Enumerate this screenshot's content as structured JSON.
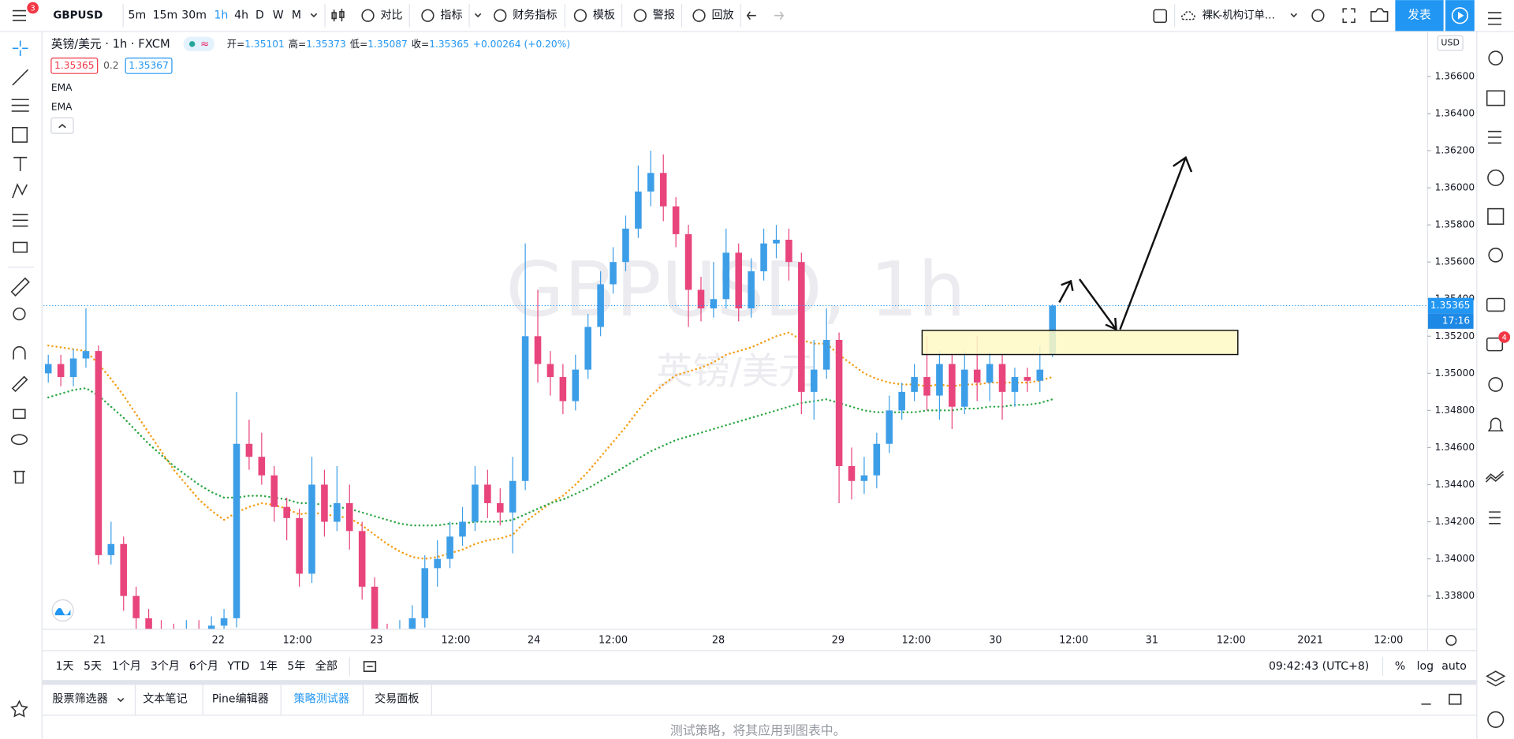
{
  "toolbar": {
    "badge": "3",
    "symbol": "GBPUSD",
    "intervals": [
      "5m",
      "15m",
      "30m",
      "1h",
      "4h",
      "D",
      "W",
      "M"
    ],
    "active_interval": "1h",
    "buttons": [
      "对比",
      "指标",
      "财务指标",
      "模板",
      "警报",
      "回放"
    ],
    "layout_name": "裸K-机构订单...",
    "publish": "发表"
  },
  "legend": {
    "title": "英镑/美元 · 1h · FXCM",
    "ohlc": [
      {
        "label": "开=",
        "value": "1.35101"
      },
      {
        "label": "高=",
        "value": "1.35373"
      },
      {
        "label": "低=",
        "value": "1.35087"
      },
      {
        "label": "收=",
        "value": "1.35365"
      }
    ],
    "change": "+0.00264 (+0.20%)",
    "bid": "1.35365",
    "spread": "0.2",
    "ask": "1.35367",
    "indicators": [
      "EMA",
      "EMA"
    ]
  },
  "watermark": {
    "symbol": "GBPUSD, 1h",
    "name": "英镑/美元"
  },
  "chart_data": {
    "type": "candlestick",
    "currency": "USD",
    "up_color": "#3d9ee8",
    "down_color": "#e8457c",
    "open": [
      1.35,
      1.3505,
      1.3498,
      1.3508,
      1.3512,
      1.3402,
      1.3408,
      1.338,
      1.3368,
      1.3362,
      1.336,
      1.3358,
      1.3362,
      1.336,
      1.3364,
      1.3368,
      1.3462,
      1.3455,
      1.3445,
      1.3428,
      1.3422,
      1.3392,
      1.344,
      1.342,
      1.343,
      1.3415,
      1.3385,
      1.336,
      1.3355,
      1.3362,
      1.3368,
      1.3395,
      1.34,
      1.3412,
      1.342,
      1.344,
      1.343,
      1.3425,
      1.3442,
      1.352,
      1.3505,
      1.3498,
      1.3485,
      1.3502,
      1.3525,
      1.3548,
      1.356,
      1.3578,
      1.3598,
      1.3608,
      1.359,
      1.3575,
      1.3545,
      1.3535,
      1.354,
      1.3565,
      1.3535,
      1.3555,
      1.357,
      1.3572,
      1.356,
      1.349,
      1.3502,
      1.3518,
      1.345,
      1.3442,
      1.3445,
      1.3462,
      1.348,
      1.349,
      1.3498,
      1.3488,
      1.3505,
      1.3482,
      1.3502,
      1.3495,
      1.3505,
      1.349,
      1.3498,
      1.3496,
      1.35101
    ],
    "high": [
      1.351,
      1.351,
      1.3513,
      1.3535,
      1.3515,
      1.342,
      1.3412,
      1.3385,
      1.3373,
      1.3367,
      1.3365,
      1.3367,
      1.3367,
      1.3369,
      1.3373,
      1.349,
      1.3475,
      1.3468,
      1.345,
      1.3433,
      1.3427,
      1.3455,
      1.3448,
      1.345,
      1.344,
      1.342,
      1.339,
      1.3365,
      1.3367,
      1.3375,
      1.3402,
      1.341,
      1.342,
      1.3428,
      1.345,
      1.3448,
      1.3438,
      1.3455,
      1.357,
      1.3545,
      1.3512,
      1.3505,
      1.351,
      1.3532,
      1.3555,
      1.3568,
      1.3585,
      1.3612,
      1.362,
      1.3618,
      1.3595,
      1.358,
      1.3552,
      1.356,
      1.3578,
      1.357,
      1.3562,
      1.3578,
      1.358,
      1.3578,
      1.3565,
      1.3518,
      1.3535,
      1.3522,
      1.346,
      1.3455,
      1.3468,
      1.3488,
      1.3495,
      1.3505,
      1.352,
      1.3512,
      1.351,
      1.3512,
      1.352,
      1.3512,
      1.351,
      1.3503,
      1.3503,
      1.3515,
      1.35373
    ],
    "low": [
      1.3495,
      1.3493,
      1.3493,
      1.3503,
      1.3397,
      1.3397,
      1.3372,
      1.336,
      1.3355,
      1.3355,
      1.3352,
      1.3353,
      1.3355,
      1.3355,
      1.3359,
      1.3363,
      1.3448,
      1.344,
      1.342,
      1.341,
      1.3385,
      1.3387,
      1.3412,
      1.3415,
      1.3405,
      1.3378,
      1.3352,
      1.335,
      1.335,
      1.3357,
      1.3363,
      1.3385,
      1.3395,
      1.3407,
      1.3415,
      1.3422,
      1.3418,
      1.3403,
      1.3437,
      1.3495,
      1.3488,
      1.3478,
      1.348,
      1.3497,
      1.352,
      1.3543,
      1.3555,
      1.3573,
      1.359,
      1.3582,
      1.3568,
      1.3525,
      1.3528,
      1.353,
      1.3535,
      1.3528,
      1.353,
      1.355,
      1.3562,
      1.355,
      1.3478,
      1.3475,
      1.3497,
      1.343,
      1.3432,
      1.3435,
      1.3438,
      1.3457,
      1.3475,
      1.3485,
      1.348,
      1.3475,
      1.347,
      1.3478,
      1.3485,
      1.3485,
      1.3475,
      1.3482,
      1.349,
      1.349,
      1.35087
    ],
    "close": [
      1.3505,
      1.3498,
      1.3508,
      1.3512,
      1.3402,
      1.3408,
      1.338,
      1.3368,
      1.3362,
      1.336,
      1.3358,
      1.3362,
      1.336,
      1.3364,
      1.3368,
      1.3462,
      1.3455,
      1.3445,
      1.3428,
      1.3422,
      1.3392,
      1.344,
      1.342,
      1.343,
      1.3415,
      1.3385,
      1.336,
      1.3355,
      1.3362,
      1.3368,
      1.3395,
      1.34,
      1.3412,
      1.342,
      1.344,
      1.343,
      1.3425,
      1.3442,
      1.352,
      1.3505,
      1.3498,
      1.3485,
      1.3502,
      1.3525,
      1.3548,
      1.356,
      1.3578,
      1.3598,
      1.3608,
      1.359,
      1.3575,
      1.3545,
      1.3535,
      1.354,
      1.3565,
      1.3535,
      1.3555,
      1.357,
      1.3572,
      1.356,
      1.349,
      1.3502,
      1.3518,
      1.345,
      1.3442,
      1.3445,
      1.3462,
      1.348,
      1.349,
      1.3498,
      1.3488,
      1.3505,
      1.3482,
      1.3502,
      1.3495,
      1.3505,
      1.349,
      1.3498,
      1.3496,
      1.3502,
      1.35365
    ],
    "ema": [
      {
        "color": "#f39c12",
        "values": [
          1.3515,
          1.3514,
          1.3513,
          1.3512,
          1.3505,
          1.3497,
          1.3488,
          1.3478,
          1.3468,
          1.3458,
          1.3448,
          1.344,
          1.3432,
          1.3426,
          1.3421,
          1.3425,
          1.3428,
          1.343,
          1.3429,
          1.3427,
          1.3424,
          1.3425,
          1.3424,
          1.3423,
          1.3422,
          1.3418,
          1.3413,
          1.3408,
          1.3404,
          1.3401,
          1.34,
          1.3401,
          1.3403,
          1.3405,
          1.3408,
          1.341,
          1.3411,
          1.3413,
          1.342,
          1.3425,
          1.343,
          1.3434,
          1.344,
          1.3447,
          1.3455,
          1.3463,
          1.3471,
          1.348,
          1.3488,
          1.3494,
          1.3499,
          1.3501,
          1.3503,
          1.3506,
          1.351,
          1.3512,
          1.3514,
          1.3517,
          1.352,
          1.3522,
          1.3518,
          1.3516,
          1.3516,
          1.351,
          1.3505,
          1.35,
          1.3497,
          1.3495,
          1.3494,
          1.3494,
          1.3493,
          1.3494,
          1.3493,
          1.3494,
          1.3494,
          1.3495,
          1.3495,
          1.3495,
          1.3495,
          1.3496,
          1.3498
        ]
      },
      {
        "color": "#2ca644",
        "values": [
          1.3487,
          1.3489,
          1.3491,
          1.3492,
          1.3488,
          1.3482,
          1.3476,
          1.3469,
          1.3462,
          1.3456,
          1.345,
          1.3445,
          1.344,
          1.3436,
          1.3433,
          1.3433,
          1.3434,
          1.3434,
          1.3433,
          1.3432,
          1.343,
          1.343,
          1.3429,
          1.3428,
          1.3427,
          1.3425,
          1.3423,
          1.3421,
          1.3419,
          1.3418,
          1.3418,
          1.3418,
          1.3419,
          1.3419,
          1.342,
          1.342,
          1.342,
          1.3421,
          1.3424,
          1.3427,
          1.343,
          1.3432,
          1.3435,
          1.3438,
          1.3442,
          1.3446,
          1.345,
          1.3454,
          1.3458,
          1.3461,
          1.3464,
          1.3466,
          1.3468,
          1.347,
          1.3472,
          1.3474,
          1.3476,
          1.3478,
          1.348,
          1.3482,
          1.3484,
          1.3485,
          1.3486,
          1.3484,
          1.3482,
          1.348,
          1.3479,
          1.3479,
          1.3479,
          1.3479,
          1.348,
          1.348,
          1.348,
          1.3481,
          1.3481,
          1.3482,
          1.3482,
          1.3483,
          1.3483,
          1.3484,
          1.3486
        ]
      }
    ],
    "ylim": [
      1.33623,
      1.36845
    ],
    "yticks": [
      {
        "value": 1.366,
        "label": "1.36600"
      },
      {
        "value": 1.364,
        "label": "1.36400"
      },
      {
        "value": 1.362,
        "label": "1.36200"
      },
      {
        "value": 1.36,
        "label": "1.36000"
      },
      {
        "value": 1.358,
        "label": "1.35800"
      },
      {
        "value": 1.356,
        "label": "1.35600"
      },
      {
        "value": 1.354,
        "label": "1.35400"
      },
      {
        "value": 1.352,
        "label": "1.35200"
      },
      {
        "value": 1.35,
        "label": "1.35000"
      },
      {
        "value": 1.348,
        "label": "1.34800"
      },
      {
        "value": 1.346,
        "label": "1.34600"
      },
      {
        "value": 1.344,
        "label": "1.34400"
      },
      {
        "value": 1.342,
        "label": "1.34200"
      },
      {
        "value": 1.34,
        "label": "1.34000"
      },
      {
        "value": 1.338,
        "label": "1.33800"
      }
    ],
    "x_labels": [
      "21",
      "22",
      "12:00",
      "23",
      "12:00",
      "24",
      "12:00",
      "28",
      "29",
      "12:00",
      "30",
      "12:00",
      "31",
      "12:00",
      "2021",
      "12:00"
    ],
    "last_price": {
      "value": 1.35365,
      "label": "1.35365"
    },
    "countdown": "17:16"
  },
  "range_bar": {
    "ranges": [
      "1天",
      "5天",
      "1个月",
      "3个月",
      "6个月",
      "YTD",
      "1年",
      "5年",
      "全部"
    ],
    "clock": "09:42:43 (UTC+8)",
    "options": [
      "%",
      "log",
      "auto"
    ]
  },
  "panel": {
    "tabs": [
      "股票筛选器",
      "文本笔记",
      "Pine编辑器",
      "策略测试器",
      "交易面板"
    ],
    "active_tab": "策略测试器",
    "message": "测试策略，将其应用到图表中。"
  },
  "sidebar_badge": "4"
}
